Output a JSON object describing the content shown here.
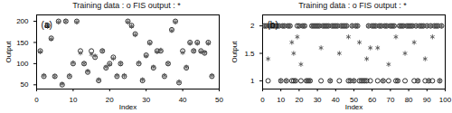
{
  "chart_data": [
    {
      "type": "scatter",
      "title": "Training data : o   FIS output : *",
      "annotation": "(a)",
      "x_label": "Index",
      "y_label": "Output",
      "x": [
        1,
        2,
        3,
        4,
        5,
        6,
        7,
        8,
        9,
        10,
        11,
        12,
        13,
        14,
        15,
        16,
        17,
        18,
        19,
        20,
        21,
        22,
        23,
        24,
        25,
        26,
        27,
        28,
        29,
        30,
        31,
        32,
        33,
        34,
        35,
        36,
        37,
        38,
        39,
        40,
        41,
        42,
        43,
        44,
        45,
        46,
        47,
        48
      ],
      "series": [
        {
          "name": "Training data",
          "marker": "circle",
          "color": "#1a1a1a",
          "values": [
            130,
            70,
            190,
            160,
            70,
            200,
            50,
            200,
            70,
            100,
            200,
            130,
            100,
            80,
            130,
            115,
            60,
            130,
            90,
            100,
            115,
            70,
            100,
            70,
            200,
            190,
            170,
            100,
            60,
            120,
            150,
            90,
            130,
            130,
            70,
            100,
            180,
            200,
            55,
            130,
            90,
            150,
            130,
            150,
            130,
            125,
            150,
            70
          ]
        },
        {
          "name": "FIS output",
          "marker": "asterisk",
          "color": "#555555",
          "values": [
            128,
            72,
            188,
            158,
            70,
            198,
            52,
            200,
            72,
            102,
            198,
            125,
            100,
            82,
            122,
            118,
            62,
            130,
            92,
            98,
            112,
            72,
            100,
            72,
            198,
            188,
            168,
            102,
            62,
            118,
            148,
            92,
            128,
            132,
            72,
            100,
            178,
            198,
            57,
            126,
            92,
            148,
            130,
            148,
            128,
            126,
            148,
            72
          ]
        }
      ],
      "xlim": [
        0,
        50
      ],
      "xticks": [
        0,
        10,
        20,
        30,
        40,
        50
      ],
      "ylim": [
        40,
        215
      ],
      "yticks": [
        50,
        100,
        150,
        200
      ]
    },
    {
      "type": "scatter",
      "title": "Training data : o   FIS output : *",
      "annotation": "(b)",
      "x_label": "Index",
      "y_label": "Output",
      "x": [
        1,
        2,
        3,
        4,
        5,
        6,
        7,
        8,
        9,
        10,
        11,
        12,
        13,
        14,
        15,
        16,
        17,
        18,
        19,
        20,
        21,
        22,
        23,
        24,
        25,
        26,
        27,
        28,
        29,
        30,
        31,
        32,
        33,
        34,
        35,
        36,
        37,
        38,
        39,
        40,
        41,
        42,
        43,
        44,
        45,
        46,
        47,
        48,
        49,
        50,
        51,
        52,
        53,
        54,
        55,
        56,
        57,
        58,
        59,
        60,
        61,
        62,
        63,
        64,
        65,
        66,
        67,
        68,
        69,
        70,
        71,
        72,
        73,
        74,
        75,
        76,
        77,
        78,
        79,
        80,
        81,
        82,
        83,
        84,
        85,
        86,
        87,
        88,
        89,
        90,
        91,
        92,
        93,
        94,
        95,
        96,
        97,
        98
      ],
      "series": [
        {
          "name": "Training data",
          "marker": "circle",
          "color": "#1a1a1a",
          "values": [
            2,
            2,
            1,
            2,
            2,
            2,
            2,
            2,
            2,
            1,
            2,
            2,
            1,
            2,
            2,
            1,
            1,
            1,
            2,
            2,
            1,
            2,
            2,
            1,
            1,
            1,
            2,
            2,
            2,
            2,
            2,
            1,
            2,
            2,
            2,
            2,
            1,
            2,
            2,
            2,
            2,
            1,
            2,
            2,
            2,
            2,
            1,
            1,
            2,
            1,
            2,
            2,
            1,
            1,
            1,
            1,
            1,
            2,
            1,
            2,
            2,
            2,
            1,
            2,
            2,
            1,
            2,
            2,
            1,
            2,
            2,
            2,
            1,
            1,
            2,
            2,
            2,
            1,
            2,
            2,
            2,
            2,
            1,
            2,
            1,
            2,
            2,
            2,
            1,
            2,
            1,
            2,
            1,
            2,
            2,
            2,
            1,
            2
          ]
        },
        {
          "name": "FIS output",
          "marker": "asterisk",
          "color": "#555555",
          "values": [
            2,
            2,
            1.4,
            2,
            2,
            2,
            2,
            2,
            2,
            1,
            2,
            2,
            1,
            2,
            2,
            1.7,
            1.5,
            1,
            1.8,
            2,
            1.3,
            2,
            2,
            1,
            1,
            1,
            2,
            2,
            2,
            2,
            2,
            1.6,
            2,
            2,
            2,
            2,
            1,
            2,
            2,
            2,
            2,
            1.5,
            2,
            2,
            2,
            2,
            1.8,
            1,
            2,
            1,
            2,
            2,
            1.7,
            1,
            1,
            1,
            1.4,
            2,
            1.6,
            2,
            2,
            2,
            1.6,
            2,
            2,
            1,
            2,
            2,
            1.3,
            2,
            2,
            2,
            1.8,
            1,
            2,
            2,
            2,
            1.5,
            2,
            2,
            2,
            2,
            1.7,
            2,
            1,
            2,
            2,
            2,
            1.4,
            2,
            1,
            2,
            1.8,
            2,
            2,
            2,
            1,
            2
          ]
        }
      ],
      "xlim": [
        0,
        100
      ],
      "xticks": [
        0,
        10,
        20,
        30,
        40,
        50,
        60,
        70,
        80,
        90,
        100
      ],
      "ylim": [
        0.85,
        2.2
      ],
      "yticks": [
        1,
        1.5,
        2
      ]
    }
  ]
}
